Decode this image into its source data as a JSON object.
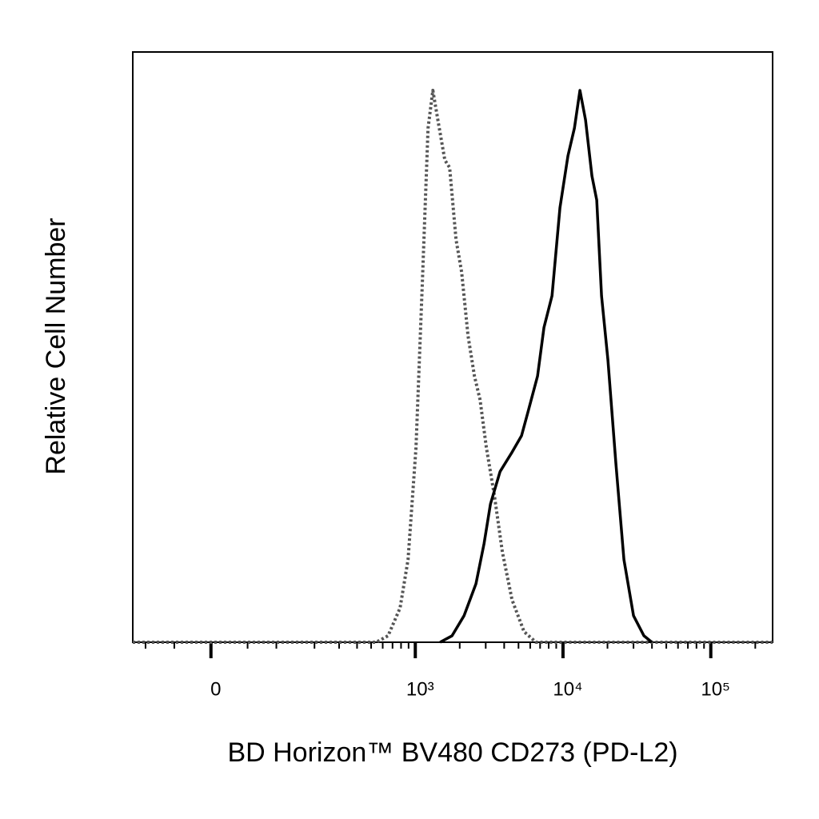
{
  "chart_data": {
    "type": "line",
    "xlabel": "BD Horizon™ BV480 CD273 (PD-L2)",
    "ylabel": "Relative Cell Number",
    "xscale": {
      "type": "asinh",
      "cofactor": 83
    },
    "xlim": [
      -128,
      262000
    ],
    "ylim": [
      0,
      100
    ],
    "xticks": [
      0,
      {
        "value": 1000,
        "label": "10³"
      },
      {
        "value": 10000,
        "label": "10⁴"
      },
      {
        "value": 100000,
        "label": "10⁵"
      }
    ],
    "xminor": [
      -100,
      -50,
      50,
      100,
      200,
      300,
      400,
      500,
      600,
      700,
      800,
      900,
      2000,
      3000,
      4000,
      5000,
      6000,
      7000,
      8000,
      9000,
      20000,
      30000,
      40000,
      50000,
      60000,
      70000,
      80000,
      90000,
      200000
    ],
    "series": [
      {
        "color": "#555555",
        "dash": "dotted",
        "x": [
          -128,
          541,
          653,
          788,
          893,
          1011,
          1118,
          1220,
          1315,
          1435,
          1586,
          1709,
          1888,
          2060,
          2277,
          2517,
          2746,
          3032,
          3435,
          3888,
          4518,
          5448,
          6563,
          262000
        ],
        "values": [
          0,
          0,
          1.1,
          5.8,
          14.0,
          32.9,
          61.4,
          87.1,
          93.5,
          87.9,
          81.7,
          80.4,
          68.2,
          62.7,
          51.9,
          45.1,
          41.1,
          32.9,
          24.8,
          15.3,
          7.2,
          1.8,
          0,
          0
        ]
      },
      {
        "color": "#000000",
        "dash": "solid",
        "x": [
          1471,
          1774,
          2140,
          2578,
          2921,
          3229,
          3748,
          4518,
          5244,
          5795,
          6727,
          7434,
          8425,
          9540,
          10807,
          11944,
          13026,
          14216,
          15694,
          16908,
          18230,
          20138,
          22814,
          25837,
          30017,
          35270,
          39937
        ],
        "values": [
          0,
          1.1,
          4.5,
          9.9,
          16.7,
          23.4,
          28.9,
          32.2,
          35.0,
          39.0,
          45.1,
          53.3,
          58.7,
          73.6,
          82.4,
          87.1,
          93.5,
          88.5,
          79.0,
          74.9,
          58.7,
          47.8,
          30.2,
          14.0,
          4.5,
          1.1,
          0
        ]
      }
    ]
  }
}
